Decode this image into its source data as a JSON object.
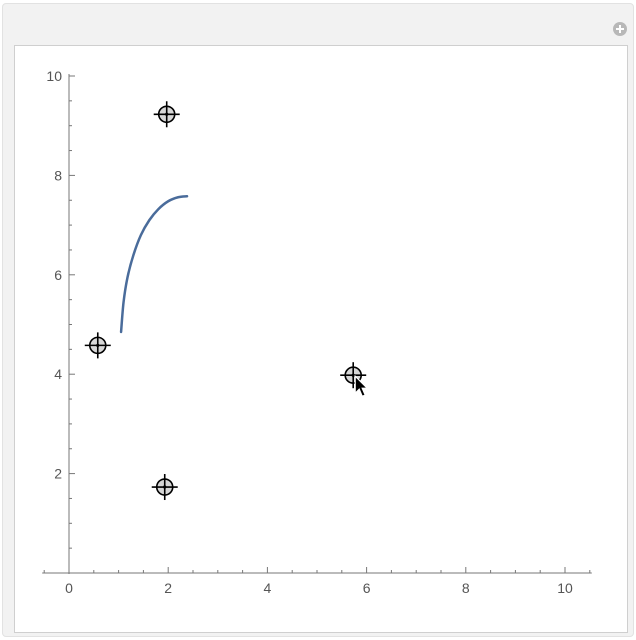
{
  "chart_data": {
    "type": "line",
    "x_axis": {
      "range": [
        -0.5,
        10.5
      ],
      "ticks": [
        0,
        2,
        4,
        6,
        8,
        10
      ],
      "tick_labels": [
        "0",
        "2",
        "4",
        "6",
        "8",
        "10"
      ]
    },
    "y_axis": {
      "range": [
        0,
        10
      ],
      "ticks": [
        2,
        4,
        6,
        8,
        10
      ],
      "tick_labels": [
        "2",
        "4",
        "6",
        "8",
        "10"
      ]
    },
    "grid": false,
    "curve": {
      "color": "#4a6c9b",
      "points": [
        [
          1.05,
          4.85
        ],
        [
          1.1,
          5.45
        ],
        [
          1.18,
          5.95
        ],
        [
          1.3,
          6.4
        ],
        [
          1.45,
          6.8
        ],
        [
          1.62,
          7.1
        ],
        [
          1.8,
          7.32
        ],
        [
          2.0,
          7.48
        ],
        [
          2.2,
          7.56
        ],
        [
          2.38,
          7.58
        ]
      ]
    },
    "control_points": [
      {
        "x": 1.97,
        "y": 9.23
      },
      {
        "x": 0.58,
        "y": 4.58
      },
      {
        "x": 1.93,
        "y": 1.73
      },
      {
        "x": 5.73,
        "y": 3.98
      }
    ]
  }
}
